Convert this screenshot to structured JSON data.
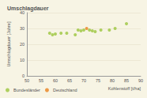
{
  "chart_data": {
    "type": "scatter",
    "title": "Umschlagdauer",
    "x_label": "Kohlenstoff [t/ha]",
    "y_label": "Umschlagdauer [Jahre]",
    "xlim": [
      50,
      90
    ],
    "xticks": [
      50,
      55,
      60,
      65,
      70,
      75,
      80,
      85,
      90
    ],
    "ylim": [
      0,
      40
    ],
    "yticks": [
      0,
      10,
      20,
      30,
      40
    ],
    "grid": true,
    "legend": "lower left",
    "series": [
      {
        "name": "Bundesländer",
        "color": "#9bc53d",
        "marker": "circle",
        "x": [
          58,
          59,
          60,
          62,
          64,
          67,
          68,
          69,
          70,
          72,
          73,
          74,
          76,
          79,
          81,
          85
        ],
        "values": [
          27,
          26,
          26.5,
          27,
          27,
          26,
          29,
          28.5,
          29,
          29,
          28.5,
          28,
          29,
          29,
          30,
          33
        ]
      },
      {
        "name": "Deutschland",
        "color": "#e8821e",
        "marker": "circle",
        "x": [
          71
        ],
        "values": [
          30
        ]
      }
    ]
  }
}
